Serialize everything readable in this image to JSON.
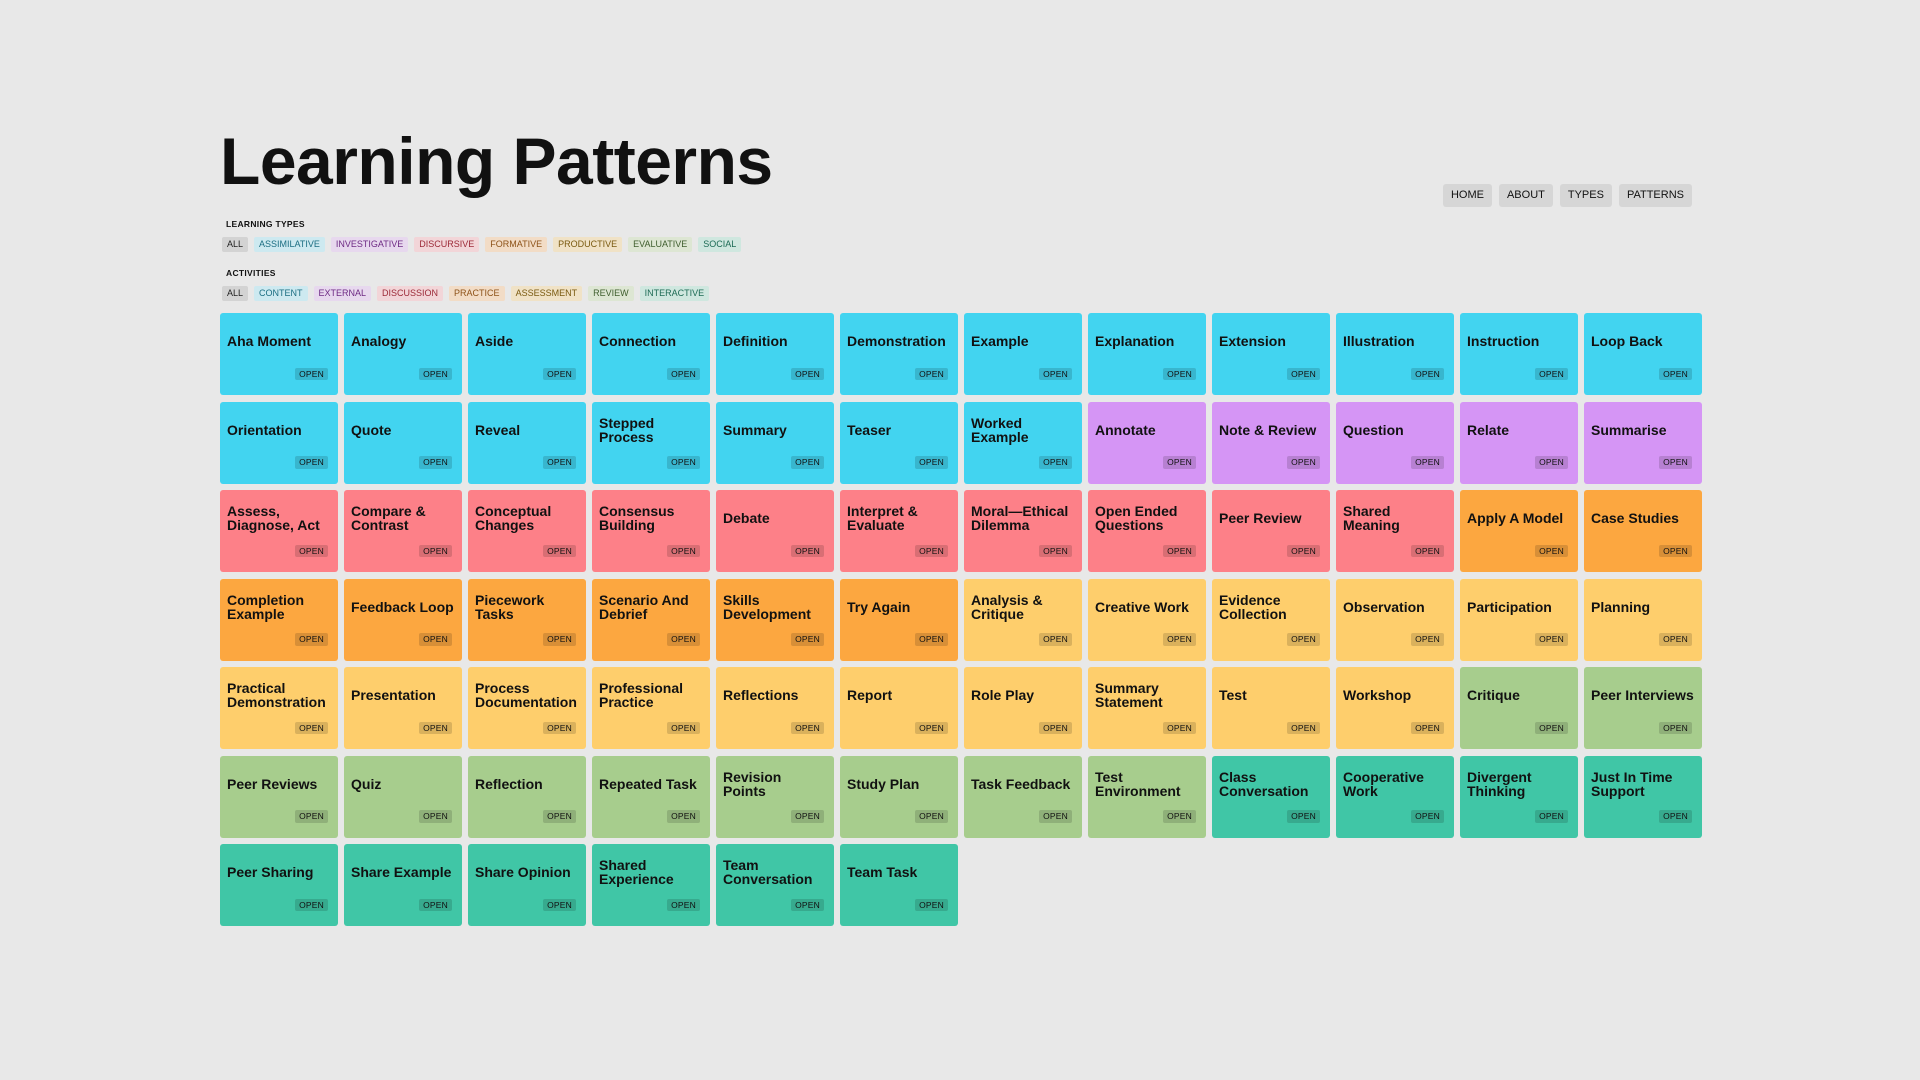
{
  "page": {
    "title": "Learning Patterns"
  },
  "nav": [
    {
      "label": "HOME"
    },
    {
      "label": "ABOUT"
    },
    {
      "label": "TYPES"
    },
    {
      "label": "PATTERNS"
    }
  ],
  "learning_types": {
    "label": "LEARNING TYPES",
    "chips": [
      {
        "label": "ALL",
        "bg": "#d3d3d3",
        "fg": "#222"
      },
      {
        "label": "ASSIMILATIVE",
        "bg": "#cde9f0",
        "fg": "#1c6e82"
      },
      {
        "label": "INVESTIGATIVE",
        "bg": "#e7d8ee",
        "fg": "#6e2a84"
      },
      {
        "label": "DISCURSIVE",
        "bg": "#f2d5d8",
        "fg": "#9c2a38"
      },
      {
        "label": "FORMATIVE",
        "bg": "#f2dcc6",
        "fg": "#8d5218"
      },
      {
        "label": "PRODUCTIVE",
        "bg": "#f0e2c6",
        "fg": "#7a5a10"
      },
      {
        "label": "EVALUATIVE",
        "bg": "#dde6d3",
        "fg": "#3f5e2e"
      },
      {
        "label": "SOCIAL",
        "bg": "#cfe7df",
        "fg": "#1d6b55"
      }
    ]
  },
  "activities": {
    "label": "ACTIVITIES",
    "chips": [
      {
        "label": "ALL",
        "bg": "#d3d3d3",
        "fg": "#222"
      },
      {
        "label": "CONTENT",
        "bg": "#cde9f0",
        "fg": "#1c6e82"
      },
      {
        "label": "EXTERNAL",
        "bg": "#e7d8ee",
        "fg": "#6e2a84"
      },
      {
        "label": "DISCUSSION",
        "bg": "#f2d5d8",
        "fg": "#9c2a38"
      },
      {
        "label": "PRACTICE",
        "bg": "#f2dcc6",
        "fg": "#8d5218"
      },
      {
        "label": "ASSESSMENT",
        "bg": "#f0e2c6",
        "fg": "#7a5a10"
      },
      {
        "label": "REVIEW",
        "bg": "#dde6d3",
        "fg": "#3f5e2e"
      },
      {
        "label": "INTERACTIVE",
        "bg": "#cfe7df",
        "fg": "#1d6b55"
      }
    ]
  },
  "colors": {
    "assimilative": "#42d4f0",
    "investigative": "#d595f5",
    "discursive": "#fd8088",
    "formative": "#fca740",
    "productive": "#fece6c",
    "evaluative": "#a7cd8d",
    "social": "#40c6a6"
  },
  "open_label": "OPEN",
  "patterns": [
    {
      "name": "Aha Moment",
      "type": "assimilative"
    },
    {
      "name": "Analogy",
      "type": "assimilative"
    },
    {
      "name": "Aside",
      "type": "assimilative"
    },
    {
      "name": "Connection",
      "type": "assimilative"
    },
    {
      "name": "Definition",
      "type": "assimilative"
    },
    {
      "name": "Demonstration",
      "type": "assimilative"
    },
    {
      "name": "Example",
      "type": "assimilative"
    },
    {
      "name": "Explanation",
      "type": "assimilative"
    },
    {
      "name": "Extension",
      "type": "assimilative"
    },
    {
      "name": "Illustration",
      "type": "assimilative"
    },
    {
      "name": "Instruction",
      "type": "assimilative"
    },
    {
      "name": "Loop Back",
      "type": "assimilative"
    },
    {
      "name": "Orientation",
      "type": "assimilative"
    },
    {
      "name": "Quote",
      "type": "assimilative"
    },
    {
      "name": "Reveal",
      "type": "assimilative"
    },
    {
      "name": "Stepped Process",
      "type": "assimilative"
    },
    {
      "name": "Summary",
      "type": "assimilative"
    },
    {
      "name": "Teaser",
      "type": "assimilative"
    },
    {
      "name": "Worked Example",
      "type": "assimilative"
    },
    {
      "name": "Annotate",
      "type": "investigative"
    },
    {
      "name": "Note & Review",
      "type": "investigative"
    },
    {
      "name": "Question",
      "type": "investigative"
    },
    {
      "name": "Relate",
      "type": "investigative"
    },
    {
      "name": "Summarise",
      "type": "investigative"
    },
    {
      "name": "Assess, Diagnose, Act",
      "type": "discursive"
    },
    {
      "name": "Compare & Contrast",
      "type": "discursive"
    },
    {
      "name": "Conceptual Changes",
      "type": "discursive"
    },
    {
      "name": "Consensus Building",
      "type": "discursive"
    },
    {
      "name": "Debate",
      "type": "discursive"
    },
    {
      "name": "Interpret & Evaluate",
      "type": "discursive"
    },
    {
      "name": "Moral—Ethical Dilemma",
      "type": "discursive"
    },
    {
      "name": "Open Ended Questions",
      "type": "discursive"
    },
    {
      "name": "Peer Review",
      "type": "discursive"
    },
    {
      "name": "Shared Meaning",
      "type": "discursive"
    },
    {
      "name": "Apply A Model",
      "type": "formative"
    },
    {
      "name": "Case Studies",
      "type": "formative"
    },
    {
      "name": "Completion Example",
      "type": "formative"
    },
    {
      "name": "Feedback Loop",
      "type": "formative"
    },
    {
      "name": "Piecework Tasks",
      "type": "formative"
    },
    {
      "name": "Scenario And Debrief",
      "type": "formative"
    },
    {
      "name": "Skills Development",
      "type": "formative"
    },
    {
      "name": "Try Again",
      "type": "formative"
    },
    {
      "name": "Analysis & Critique",
      "type": "productive"
    },
    {
      "name": "Creative Work",
      "type": "productive"
    },
    {
      "name": "Evidence Collection",
      "type": "productive"
    },
    {
      "name": "Observation",
      "type": "productive"
    },
    {
      "name": "Participation",
      "type": "productive"
    },
    {
      "name": "Planning",
      "type": "productive"
    },
    {
      "name": "Practical Demonstration",
      "type": "productive"
    },
    {
      "name": "Presentation",
      "type": "productive"
    },
    {
      "name": "Process Documentation",
      "type": "productive"
    },
    {
      "name": "Professional Practice",
      "type": "productive"
    },
    {
      "name": "Reflections",
      "type": "productive"
    },
    {
      "name": "Report",
      "type": "productive"
    },
    {
      "name": "Role Play",
      "type": "productive"
    },
    {
      "name": "Summary Statement",
      "type": "productive"
    },
    {
      "name": "Test",
      "type": "productive"
    },
    {
      "name": "Workshop",
      "type": "productive"
    },
    {
      "name": "Critique",
      "type": "evaluative"
    },
    {
      "name": "Peer Interviews",
      "type": "evaluative"
    },
    {
      "name": "Peer Reviews",
      "type": "evaluative"
    },
    {
      "name": "Quiz",
      "type": "evaluative"
    },
    {
      "name": "Reflection",
      "type": "evaluative"
    },
    {
      "name": "Repeated Task",
      "type": "evaluative"
    },
    {
      "name": "Revision Points",
      "type": "evaluative"
    },
    {
      "name": "Study Plan",
      "type": "evaluative"
    },
    {
      "name": "Task Feedback",
      "type": "evaluative"
    },
    {
      "name": "Test Environment",
      "type": "evaluative"
    },
    {
      "name": "Class Conversation",
      "type": "social"
    },
    {
      "name": "Cooperative Work",
      "type": "social"
    },
    {
      "name": "Divergent Thinking",
      "type": "social"
    },
    {
      "name": "Just In Time Support",
      "type": "social"
    },
    {
      "name": "Peer Sharing",
      "type": "social"
    },
    {
      "name": "Share Example",
      "type": "social"
    },
    {
      "name": "Share Opinion",
      "type": "social"
    },
    {
      "name": "Shared Experience",
      "type": "social"
    },
    {
      "name": "Team Conversation",
      "type": "social"
    },
    {
      "name": "Team Task",
      "type": "social"
    }
  ]
}
